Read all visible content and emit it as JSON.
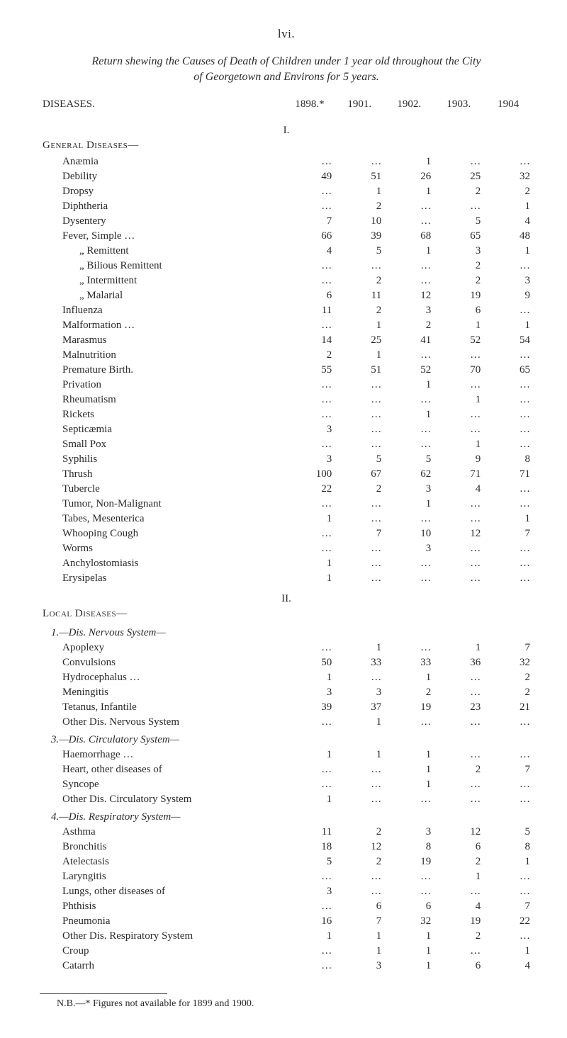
{
  "page_number": "lvi.",
  "title_line1": "Return shewing the Causes of Death of Children under 1 year old throughout the City",
  "title_line2": "of Georgetown and Environs for 5 years.",
  "columns": {
    "label": "DISEASES.",
    "y1898": "1898.*",
    "y1901": "1901.",
    "y1902": "1902.",
    "y1903": "1903.",
    "y1904": "1904"
  },
  "section1": {
    "num": "I.",
    "name": "General Diseases—",
    "rows": [
      {
        "label": "Anæmia",
        "c": [
          "…",
          "…",
          "1",
          "…",
          "…"
        ]
      },
      {
        "label": "Debility",
        "c": [
          "49",
          "51",
          "26",
          "25",
          "32"
        ]
      },
      {
        "label": "Dropsy",
        "c": [
          "…",
          "1",
          "1",
          "2",
          "2"
        ]
      },
      {
        "label": "Diphtheria",
        "c": [
          "…",
          "2",
          "…",
          "…",
          "1"
        ]
      },
      {
        "label": "Dysentery",
        "c": [
          "7",
          "10",
          "…",
          "5",
          "4"
        ]
      },
      {
        "label": "Fever,  Simple …",
        "c": [
          "66",
          "39",
          "68",
          "65",
          "48"
        ]
      },
      {
        "label": "„      Remittent",
        "c": [
          "4",
          "5",
          "1",
          "3",
          "1"
        ],
        "indent": true
      },
      {
        "label": "„      Bilious Remittent",
        "c": [
          "…",
          "…",
          "…",
          "2",
          "…"
        ],
        "indent": true
      },
      {
        "label": "„      Intermittent",
        "c": [
          "…",
          "2",
          "…",
          "2",
          "3"
        ],
        "indent": true
      },
      {
        "label": "„      Malarial",
        "c": [
          "6",
          "11",
          "12",
          "19",
          "9"
        ],
        "indent": true
      },
      {
        "label": "Influenza",
        "c": [
          "11",
          "2",
          "3",
          "6",
          "…"
        ]
      },
      {
        "label": "Malformation  …",
        "c": [
          "…",
          "1",
          "2",
          "1",
          "1"
        ]
      },
      {
        "label": "Marasmus",
        "c": [
          "14",
          "25",
          "41",
          "52",
          "54"
        ]
      },
      {
        "label": "Malnutrition",
        "c": [
          "2",
          "1",
          "…",
          "…",
          "…"
        ]
      },
      {
        "label": "Premature Birth.",
        "c": [
          "55",
          "51",
          "52",
          "70",
          "65"
        ]
      },
      {
        "label": "Privation",
        "c": [
          "…",
          "…",
          "1",
          "…",
          "…"
        ]
      },
      {
        "label": "Rheumatism",
        "c": [
          "…",
          "…",
          "…",
          "1",
          "…"
        ]
      },
      {
        "label": "Rickets",
        "c": [
          "…",
          "…",
          "1",
          "…",
          "…"
        ]
      },
      {
        "label": "Septicæmia",
        "c": [
          "3",
          "…",
          "…",
          "…",
          "…"
        ]
      },
      {
        "label": "Small Pox",
        "c": [
          "…",
          "…",
          "…",
          "1",
          "…"
        ]
      },
      {
        "label": "Syphilis",
        "c": [
          "3",
          "5",
          "5",
          "9",
          "8"
        ]
      },
      {
        "label": "Thrush",
        "c": [
          "100",
          "67",
          "62",
          "71",
          "71"
        ]
      },
      {
        "label": "Tubercle",
        "c": [
          "22",
          "2",
          "3",
          "4",
          "…"
        ]
      },
      {
        "label": "Tumor, Non-Malignant",
        "c": [
          "…",
          "…",
          "1",
          "…",
          "…"
        ]
      },
      {
        "label": "Tabes, Mesenterica",
        "c": [
          "1",
          "…",
          "…",
          "…",
          "1"
        ]
      },
      {
        "label": "Whooping Cough",
        "c": [
          "…",
          "7",
          "10",
          "12",
          "7"
        ]
      },
      {
        "label": "Worms",
        "c": [
          "…",
          "…",
          "3",
          "…",
          "…"
        ]
      },
      {
        "label": "Anchylostomiasis",
        "c": [
          "1",
          "…",
          "…",
          "…",
          "…"
        ]
      },
      {
        "label": "Erysipelas",
        "c": [
          "1",
          "…",
          "…",
          "…",
          "…"
        ]
      }
    ]
  },
  "section2": {
    "num": "II.",
    "name": "Local Diseases—",
    "sub1": {
      "heading": "1.—Dis.  Nervous System—",
      "rows": [
        {
          "label": "Apoplexy",
          "c": [
            "…",
            "1",
            "…",
            "1",
            "7"
          ]
        },
        {
          "label": "Convulsions",
          "c": [
            "50",
            "33",
            "33",
            "36",
            "32"
          ]
        },
        {
          "label": "Hydrocephalus …",
          "c": [
            "1",
            "…",
            "1",
            "…",
            "2"
          ]
        },
        {
          "label": "Meningitis",
          "c": [
            "3",
            "3",
            "2",
            "…",
            "2"
          ]
        },
        {
          "label": "Tetanus, Infantile",
          "c": [
            "39",
            "37",
            "19",
            "23",
            "21"
          ]
        },
        {
          "label": "Other Dis.  Nervous System",
          "c": [
            "…",
            "1",
            "…",
            "…",
            "…"
          ]
        }
      ]
    },
    "sub3": {
      "heading": "3.—Dis.  Circulatory System—",
      "rows": [
        {
          "label": "Haemorrhage  …",
          "c": [
            "1",
            "1",
            "1",
            "…",
            "…"
          ]
        },
        {
          "label": "Heart, other diseases of",
          "c": [
            "…",
            "…",
            "1",
            "2",
            "7"
          ]
        },
        {
          "label": "Syncope",
          "c": [
            "…",
            "…",
            "1",
            "…",
            "…"
          ]
        },
        {
          "label": "Other Dis.  Circulatory System",
          "c": [
            "1",
            "…",
            "…",
            "…",
            "…"
          ]
        }
      ]
    },
    "sub4": {
      "heading": "4.—Dis.  Respiratory System—",
      "rows": [
        {
          "label": "Asthma",
          "c": [
            "11",
            "2",
            "3",
            "12",
            "5"
          ]
        },
        {
          "label": "Bronchitis",
          "c": [
            "18",
            "12",
            "8",
            "6",
            "8"
          ]
        },
        {
          "label": "Atelectasis",
          "c": [
            "5",
            "2",
            "19",
            "2",
            "1"
          ]
        },
        {
          "label": "Laryngitis",
          "c": [
            "…",
            "…",
            "…",
            "1",
            "…"
          ]
        },
        {
          "label": "Lungs, other diseases of",
          "c": [
            "3",
            "…",
            "…",
            "…",
            "…"
          ]
        },
        {
          "label": "Phthisis",
          "c": [
            "…",
            "6",
            "6",
            "4",
            "7"
          ]
        },
        {
          "label": "Pneumonia",
          "c": [
            "16",
            "7",
            "32",
            "19",
            "22"
          ]
        },
        {
          "label": "Other Dis.  Respiratory System",
          "c": [
            "1",
            "1",
            "1",
            "2",
            "…"
          ]
        },
        {
          "label": "Croup",
          "c": [
            "…",
            "1",
            "1",
            "…",
            "1"
          ]
        },
        {
          "label": "Catarrh",
          "c": [
            "…",
            "3",
            "1",
            "6",
            "4"
          ]
        }
      ]
    }
  },
  "footnote": "N.B.—* Figures not available for 1899 and 1900."
}
